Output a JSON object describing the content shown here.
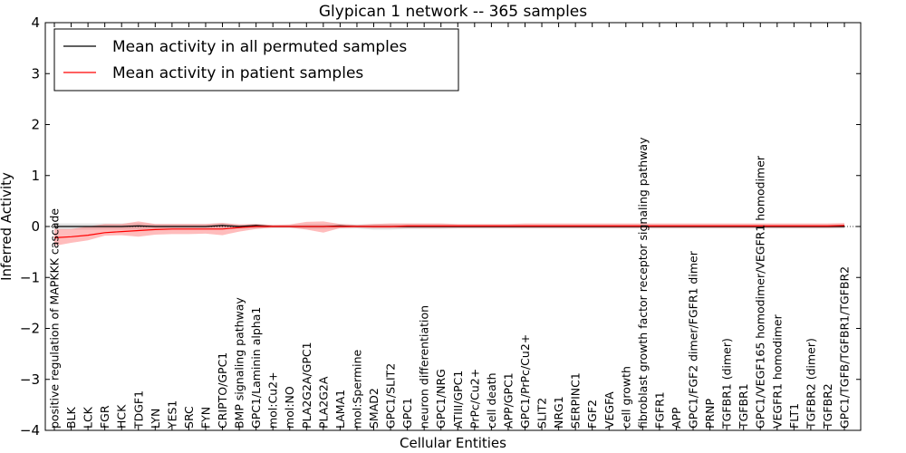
{
  "chart_data": {
    "type": "line",
    "title": "Glypican 1 network -- 365 samples",
    "xlabel": "Cellular Entities",
    "ylabel": "Inferred Activity",
    "ylim": [
      -4,
      4
    ],
    "yticks": [
      "−4",
      "−3",
      "−2",
      "−1",
      "0",
      "1",
      "2",
      "3",
      "4"
    ],
    "ytick_values": [
      -4,
      -3,
      -2,
      -1,
      0,
      1,
      2,
      3,
      4
    ],
    "legend_position": "top-left",
    "categories": [
      "positive regulation of MAPKKK cascade",
      "BLK",
      "LCK",
      "FGR",
      "HCK",
      "TDGF1",
      "LYN",
      "YES1",
      "SRC",
      "FYN",
      "CRIPTO/GPC1",
      "BMP signaling pathway",
      "GPC1/Laminin alpha1",
      "mol:Cu2+",
      "mol:NO",
      "PLA2G2A/GPC1",
      "PLA2G2A",
      "LAMA1",
      "mol:Spermine",
      "SMAD2",
      "GPC1/SLIT2",
      "GPC1",
      "neuron differentiation",
      "GPC1/NRG",
      "ATIII/GPC1",
      "PrPc/Cu2+",
      "cell death",
      "APP/GPC1",
      "GPC1/PrPc/Cu2+",
      "SLIT2",
      "NRG1",
      "SERPINC1",
      "FGF2",
      "VEGFA",
      "cell growth",
      "fibroblast growth factor receptor signaling pathway",
      "FGFR1",
      "APP",
      "GPC1/FGF2 dimer/FGFR1 dimer",
      "PRNP",
      "TGFBR1 (dimer)",
      "TGFBR1",
      "GPC1/VEGF165 homodimer/VEGFR1 homodimer",
      "VEGFR1 homodimer",
      "FLT1",
      "TGFBR2 (dimer)",
      "TGFBR2",
      "GPC1/TGFB/TGFBR1/TGFBR2"
    ],
    "series": [
      {
        "name": "Mean activity in all permuted samples",
        "color": "#000000",
        "values": [
          0.0,
          0.0,
          0.0,
          0.0,
          0.0,
          0.01,
          0.0,
          0.0,
          0.0,
          0.0,
          0.02,
          0.0,
          0.02,
          0.0,
          0.0,
          0.0,
          0.0,
          0.01,
          0.0,
          0.0,
          0.0,
          0.0,
          0.0,
          0.0,
          0.0,
          0.0,
          0.0,
          0.0,
          0.0,
          0.0,
          0.0,
          0.0,
          0.0,
          0.0,
          0.0,
          0.0,
          0.0,
          0.0,
          0.0,
          0.0,
          0.0,
          0.0,
          0.0,
          0.0,
          0.0,
          0.0,
          0.0,
          0.0
        ],
        "lower": [
          -0.06,
          -0.06,
          -0.06,
          -0.06,
          -0.06,
          -0.06,
          -0.05,
          -0.05,
          -0.05,
          -0.05,
          -0.05,
          -0.04,
          -0.04,
          -0.03,
          -0.03,
          -0.05,
          -0.05,
          -0.04,
          -0.04,
          -0.06,
          -0.06,
          -0.05,
          -0.05,
          -0.05,
          -0.04,
          -0.04,
          -0.04,
          -0.04,
          -0.04,
          -0.04,
          -0.04,
          -0.04,
          -0.04,
          -0.04,
          -0.04,
          -0.04,
          -0.04,
          -0.04,
          -0.04,
          -0.04,
          -0.04,
          -0.04,
          -0.04,
          -0.04,
          -0.04,
          -0.04,
          -0.04,
          -0.04
        ],
        "upper": [
          0.06,
          0.06,
          0.06,
          0.06,
          0.06,
          0.07,
          0.05,
          0.05,
          0.05,
          0.05,
          0.07,
          0.04,
          0.05,
          0.03,
          0.03,
          0.05,
          0.05,
          0.05,
          0.04,
          0.05,
          0.05,
          0.05,
          0.05,
          0.05,
          0.04,
          0.04,
          0.04,
          0.04,
          0.04,
          0.04,
          0.04,
          0.04,
          0.04,
          0.04,
          0.04,
          0.04,
          0.04,
          0.04,
          0.04,
          0.04,
          0.04,
          0.04,
          0.04,
          0.04,
          0.04,
          0.04,
          0.04,
          0.04
        ]
      },
      {
        "name": "Mean activity in patient samples",
        "color": "#ff0000",
        "values": [
          -0.22,
          -0.2,
          -0.17,
          -0.12,
          -0.1,
          -0.08,
          -0.06,
          -0.05,
          -0.05,
          -0.05,
          -0.05,
          -0.02,
          0.0,
          0.0,
          0.0,
          0.0,
          0.0,
          0.0,
          0.0,
          0.0,
          0.0,
          0.01,
          0.01,
          0.01,
          0.01,
          0.01,
          0.01,
          0.01,
          0.01,
          0.01,
          0.01,
          0.01,
          0.01,
          0.01,
          0.01,
          0.01,
          0.01,
          0.01,
          0.01,
          0.01,
          0.01,
          0.01,
          0.01,
          0.01,
          0.01,
          0.01,
          0.01,
          0.02
        ],
        "lower": [
          -0.38,
          -0.32,
          -0.27,
          -0.18,
          -0.17,
          -0.2,
          -0.16,
          -0.15,
          -0.15,
          -0.14,
          -0.17,
          -0.1,
          -0.05,
          -0.02,
          -0.02,
          -0.06,
          -0.12,
          -0.03,
          -0.02,
          -0.03,
          -0.03,
          -0.03,
          -0.03,
          -0.03,
          -0.03,
          -0.03,
          -0.03,
          -0.03,
          -0.03,
          -0.03,
          -0.03,
          -0.03,
          -0.03,
          -0.03,
          -0.03,
          -0.03,
          -0.03,
          -0.03,
          -0.03,
          -0.03,
          -0.03,
          -0.03,
          -0.03,
          -0.03,
          -0.03,
          -0.03,
          -0.03,
          -0.02
        ],
        "upper": [
          -0.05,
          -0.05,
          0.0,
          0.05,
          0.05,
          0.1,
          0.05,
          0.05,
          0.05,
          0.05,
          0.07,
          0.04,
          0.05,
          0.03,
          0.04,
          0.09,
          0.1,
          0.05,
          0.03,
          0.05,
          0.06,
          0.06,
          0.06,
          0.06,
          0.05,
          0.05,
          0.05,
          0.05,
          0.06,
          0.06,
          0.06,
          0.06,
          0.06,
          0.06,
          0.06,
          0.06,
          0.06,
          0.06,
          0.06,
          0.06,
          0.06,
          0.06,
          0.06,
          0.06,
          0.06,
          0.06,
          0.06,
          0.07
        ]
      }
    ]
  }
}
